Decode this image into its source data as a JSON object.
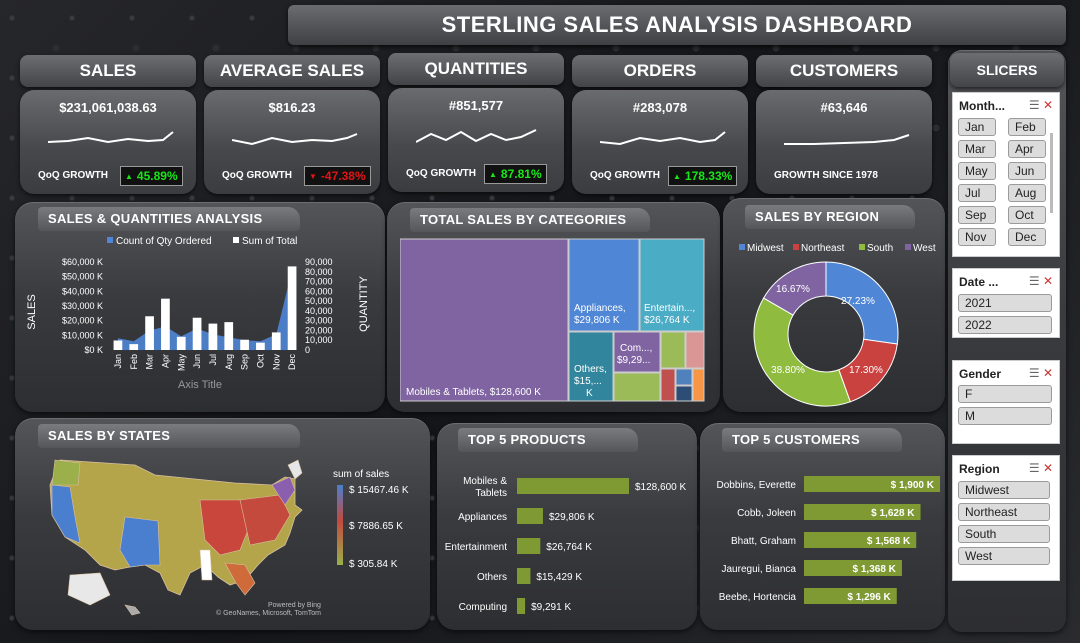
{
  "title": "STERLING SALES ANALYSIS DASHBOARD",
  "kpis": [
    {
      "label": "SALES",
      "value": "$231,061,038.63",
      "growth_label": "QoQ GROWTH",
      "growth": "45.89%",
      "arrow": "▲",
      "status": "up"
    },
    {
      "label": "AVERAGE SALES",
      "value": "$816.23",
      "growth_label": "QoQ GROWTH",
      "growth": "-47.38%",
      "arrow": "▼",
      "status": "down"
    },
    {
      "label": "QUANTITIES",
      "value": "#851,577",
      "growth_label": "QoQ GROWTH",
      "growth": "87.81%",
      "arrow": "▲",
      "status": "up"
    },
    {
      "label": "ORDERS",
      "value": "#283,078",
      "growth_label": "QoQ GROWTH",
      "growth": "178.33%",
      "arrow": "▲",
      "status": "up"
    },
    {
      "label": "CUSTOMERS",
      "value": "#63,646",
      "growth_label": "GROWTH SINCE 1978",
      "growth": "",
      "arrow": "",
      "status": "none"
    }
  ],
  "colors": {
    "up": "#19e619",
    "down": "#e01515",
    "bar_blue": "#4f86d6",
    "bar_white": "#ffffff",
    "olive": "#7f9a33",
    "midwest": "#4f86d6",
    "northeast": "#c94240",
    "south": "#8fbc3f",
    "west": "#8064a2"
  },
  "sq": {
    "title": "SALES & QUANTITIES ANALYSIS",
    "legend_qty": "Count of Qty Ordered",
    "legend_total": "Sum of Total",
    "ylabel_left": "SALES",
    "ylabel_right": "QUANTITY",
    "xlabel": "Axis Title",
    "left_ticks": [
      "$60,000 K",
      "$50,000 K",
      "$40,000 K",
      "$30,000 K",
      "$20,000 K",
      "$10,000 K",
      "$0 K"
    ],
    "right_ticks": [
      "90,000",
      "80,000",
      "70,000",
      "60,000",
      "50,000",
      "40,000",
      "30,000",
      "20,000",
      "10,000",
      "0"
    ]
  },
  "categories_title": "TOTAL SALES BY CATEGORIES",
  "treemap": [
    {
      "label": "Mobiles & Tablets, $128,600 K",
      "color": "#8064a2"
    },
    {
      "label": "Appliances, $29,806 K",
      "color": "#4f86d6"
    },
    {
      "label": "Entertain..., $26,764 K",
      "color": "#4bacc6"
    },
    {
      "label": "Others, $15,... K",
      "color": "#31859c"
    },
    {
      "label": "Com..., $9,29... K",
      "color": "#8064a2"
    }
  ],
  "region": {
    "title": "SALES BY REGION",
    "legend": [
      "Midwest",
      "Northeast",
      "South",
      "West"
    ],
    "labels": [
      "27.23%",
      "17.30%",
      "38.80%",
      "16.67%"
    ]
  },
  "states": {
    "title": "SALES BY STATES",
    "legend_title": "sum of sales",
    "legend_values": [
      "$ 15467.46 K",
      "$ 7886.65 K",
      "$ 305.84 K"
    ],
    "credit1": "Powered by Bing",
    "credit2": "© GeoNames, Microsoft, TomTom"
  },
  "products": {
    "title": "TOP 5 PRODUCTS",
    "rows": [
      {
        "name": "Mobiles & Tablets",
        "value": "$128,600 K"
      },
      {
        "name": "Appliances",
        "value": "$29,806 K"
      },
      {
        "name": "Entertainment",
        "value": "$26,764 K"
      },
      {
        "name": "Others",
        "value": "$15,429 K"
      },
      {
        "name": "Computing",
        "value": "$9,291 K"
      }
    ]
  },
  "customers": {
    "title": "TOP 5 CUSTOMERS",
    "rows": [
      {
        "name": "Dobbins, Everette",
        "value": "$ 1,900 K"
      },
      {
        "name": "Cobb, Joleen",
        "value": "$ 1,628 K"
      },
      {
        "name": "Bhatt, Graham",
        "value": "$ 1,568 K"
      },
      {
        "name": "Jauregui, Bianca",
        "value": "$ 1,368 K"
      },
      {
        "name": "Beebe, Hortencia",
        "value": "$ 1,296 K"
      }
    ]
  },
  "slicers": {
    "title": "SLICERS",
    "month": {
      "title": "Month...",
      "items": [
        "Jan",
        "Feb",
        "Mar",
        "Apr",
        "May",
        "Jun",
        "Jul",
        "Aug",
        "Sep",
        "Oct",
        "Nov",
        "Dec"
      ]
    },
    "date": {
      "title": "Date ...",
      "items": [
        "2021",
        "2022"
      ]
    },
    "gender": {
      "title": "Gender",
      "items": [
        "F",
        "M"
      ]
    },
    "region": {
      "title": "Region",
      "items": [
        "Midwest",
        "Northeast",
        "South",
        "West"
      ]
    }
  },
  "chart_data": [
    {
      "type": "bar",
      "title": "SALES & QUANTITIES ANALYSIS",
      "categories": [
        "Jan",
        "Feb",
        "Mar",
        "Apr",
        "May",
        "Jun",
        "Jul",
        "Aug",
        "Sep",
        "Oct",
        "Nov",
        "Dec"
      ],
      "series": [
        {
          "name": "Count of Qty Ordered",
          "type": "area",
          "axis": "right",
          "values": [
            12000,
            9000,
            20000,
            24000,
            14000,
            22000,
            16000,
            13000,
            10000,
            9000,
            16000,
            82000
          ]
        },
        {
          "name": "Sum of Total",
          "type": "bar",
          "axis": "left",
          "values": [
            6500,
            4000,
            23000,
            35000,
            9000,
            22000,
            18000,
            19000,
            7000,
            5000,
            12000,
            57000
          ]
        }
      ],
      "ylabel": "SALES",
      "y2label": "QUANTITY",
      "xlabel": "Axis Title",
      "ylim": [
        0,
        60000
      ],
      "y2lim": [
        0,
        90000
      ],
      "legend": "top"
    },
    {
      "type": "pie",
      "title": "SALES BY REGION",
      "categories": [
        "Midwest",
        "Northeast",
        "South",
        "West"
      ],
      "values": [
        27.23,
        17.3,
        38.8,
        16.67
      ],
      "legend": "top"
    },
    {
      "type": "bar",
      "title": "TOP 5 PRODUCTS",
      "categories": [
        "Mobiles & Tablets",
        "Appliances",
        "Entertainment",
        "Others",
        "Computing"
      ],
      "values": [
        128600,
        29806,
        26764,
        15429,
        9291
      ]
    },
    {
      "type": "bar",
      "title": "TOP 5 CUSTOMERS",
      "categories": [
        "Dobbins, Everette",
        "Cobb, Joleen",
        "Bhatt, Graham",
        "Jauregui, Bianca",
        "Beebe, Hortencia"
      ],
      "values": [
        1900,
        1628,
        1568,
        1368,
        1296
      ]
    }
  ]
}
